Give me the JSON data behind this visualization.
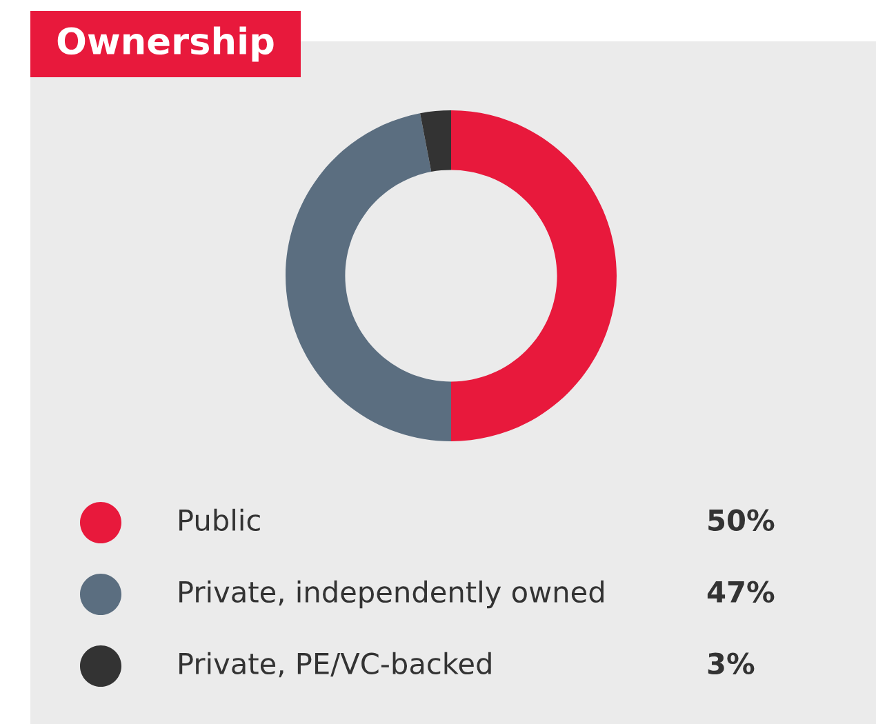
{
  "chart_data": {
    "type": "donut",
    "title": "Ownership",
    "categories": [
      "Public",
      "Private, independently owned",
      "Private, PE/VC-backed"
    ],
    "values": [
      50,
      47,
      3
    ],
    "colors": [
      "#e8193c",
      "#5b6e80",
      "#333333"
    ],
    "value_labels": [
      "50%",
      "47%",
      "3%"
    ],
    "legend": "bottom"
  }
}
